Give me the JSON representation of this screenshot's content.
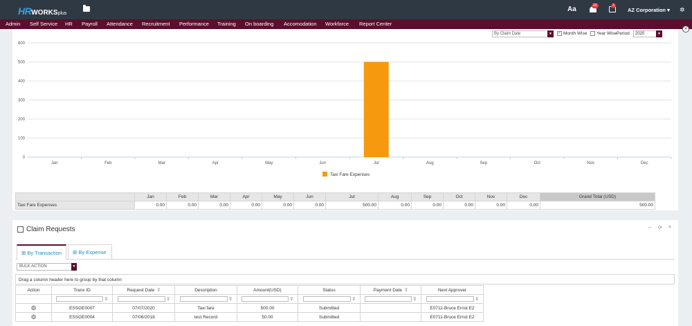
{
  "topbar": {
    "logo_hr": "HR",
    "logo_works": "WORKS",
    "logo_plus": "plus",
    "font_icon_label": "Aa",
    "notif_count": "20",
    "cal_count": "3",
    "company": "AZ Corporation ▾",
    "icons": [
      "folder-icon",
      "bell-icon",
      "calendar-icon",
      "settings-icon"
    ]
  },
  "menu": [
    "Admin",
    "Self Service",
    "HR",
    "Payroll",
    "Attendance",
    "Recruitment",
    "Performance",
    "Training",
    "On boarding",
    "Accomodation",
    "Workforce",
    "Report Center"
  ],
  "controls": {
    "claim_date_option": "By Claim Date",
    "month_wise_label": "Month Wise",
    "year_wise_label": "Year Wise",
    "period_label": "Period",
    "period_value": "2020"
  },
  "chart_data": {
    "type": "bar",
    "categories": [
      "Jan",
      "Feb",
      "Mar",
      "Apr",
      "May",
      "Jun",
      "Jul",
      "Aug",
      "Sep",
      "Oct",
      "Nov",
      "Dec"
    ],
    "series": [
      {
        "name": "Taxi Fare Expenses",
        "values": [
          0,
          0,
          0,
          0,
          0,
          0,
          500,
          0,
          0,
          0,
          0,
          0
        ]
      }
    ],
    "yticks": [
      "0",
      "100",
      "200",
      "300",
      "400",
      "500",
      "600"
    ],
    "ylim": [
      0,
      600
    ],
    "grid": true,
    "legend": "bottom-center",
    "color": "#f7990f"
  },
  "summary": {
    "months": [
      "Jan",
      "Feb",
      "Mar",
      "Apr",
      "May",
      "Jun",
      "Jul",
      "Aug",
      "Sep",
      "Oct",
      "Nov",
      "Dec"
    ],
    "grand_total_label": "Grand Total (USD)",
    "row_label": "Taxi Fare Expenses",
    "values": [
      "0.00",
      "0.00",
      "0.00",
      "0.00",
      "0.00",
      "0.00",
      "500.00",
      "0.00",
      "0.00",
      "0.00",
      "0.00",
      "0.00"
    ],
    "grand_total": "500.00"
  },
  "claims": {
    "title": "Claim Requests",
    "tools": [
      "–",
      "⟳",
      "×"
    ],
    "tabs": [
      "By Transaction",
      "By Expense"
    ],
    "bulk_action": "BULK ACTION",
    "group_hint": "Drag a column header here to group by that column",
    "columns": [
      "Action",
      "Tranx ID",
      "Request Date",
      "Description",
      "Amount(USD)",
      "Status",
      "Payment Date",
      "Next Approver"
    ],
    "rows": [
      [
        "ESSGE0007",
        "07/07/2020",
        "Taxi fare",
        "500.00",
        "Submitted",
        "",
        "E0711-Bruce Ernst E2"
      ],
      [
        "ESSGE0004",
        "07/06/2018",
        "test Record",
        "50.00",
        "Submitted",
        "",
        "E0711-Bruce Ernst E2"
      ]
    ]
  }
}
